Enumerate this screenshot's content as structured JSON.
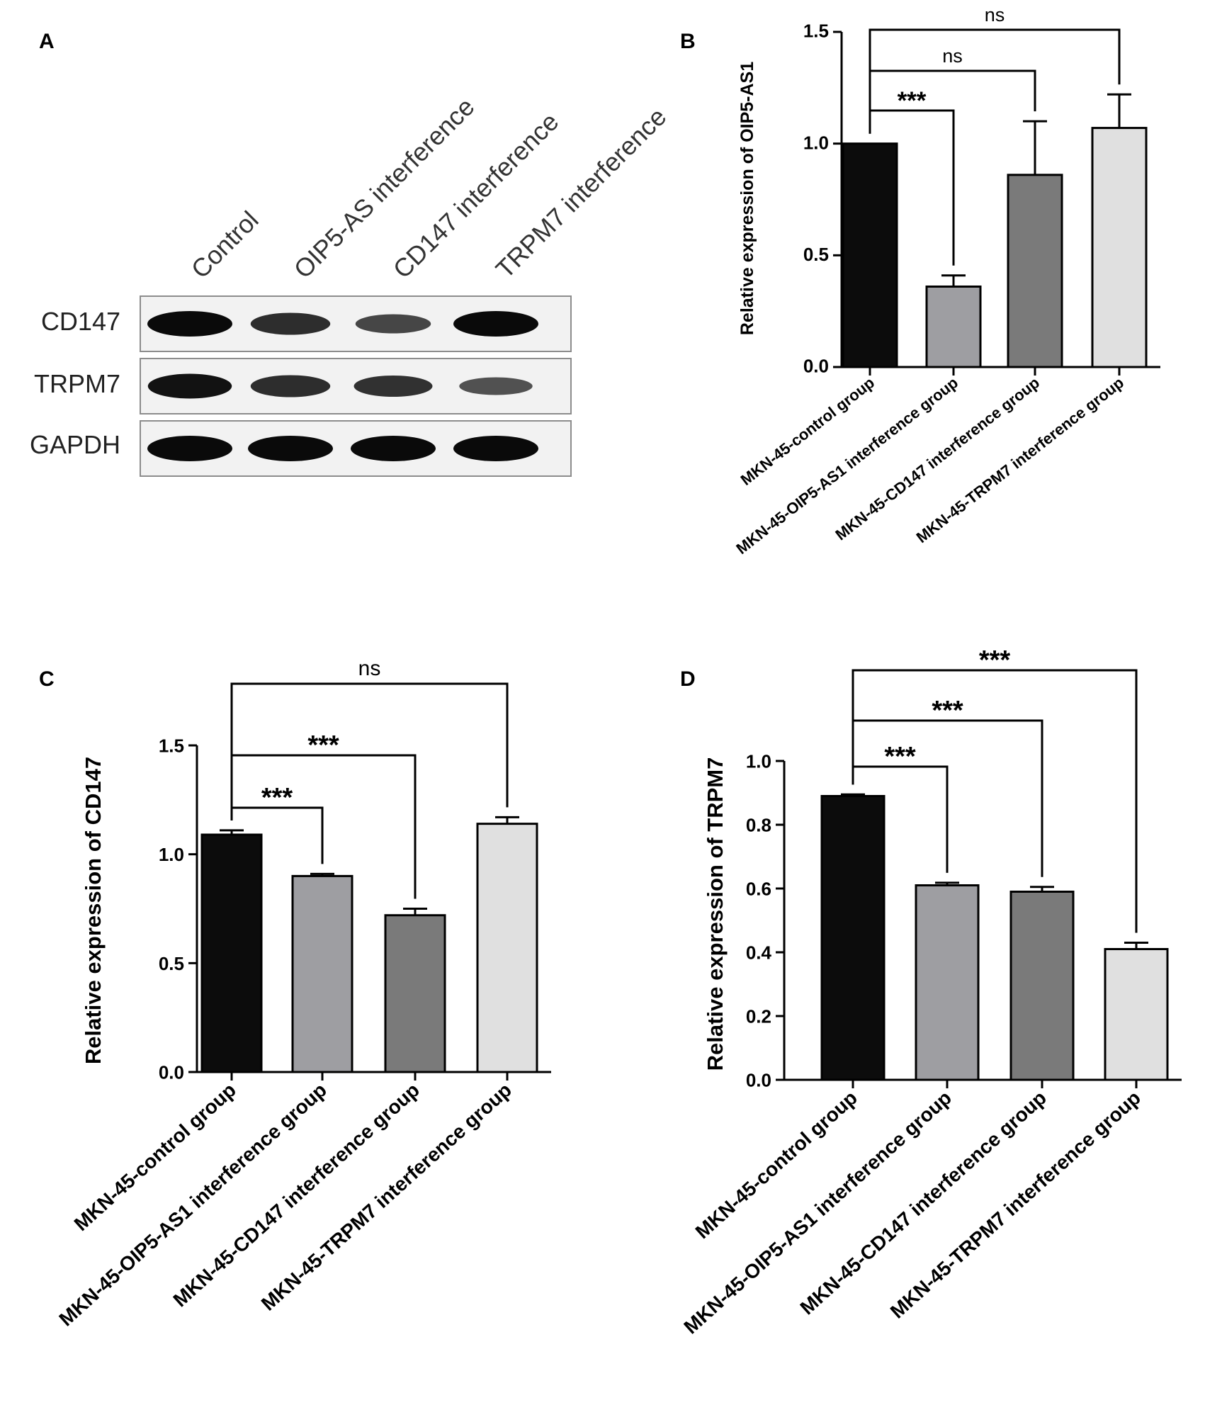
{
  "panels": {
    "A": "A",
    "B": "B",
    "C": "C",
    "D": "D"
  },
  "blot": {
    "lanes": [
      "Control",
      "OIP5-AS interference",
      "CD147 interference",
      "TRPM7 interference"
    ],
    "rows": [
      {
        "label": "CD147",
        "intensities": [
          1.0,
          0.75,
          0.55,
          1.0
        ]
      },
      {
        "label": "TRPM7",
        "intensities": [
          0.95,
          0.75,
          0.7,
          0.45
        ]
      },
      {
        "label": "GAPDH",
        "intensities": [
          1.0,
          1.0,
          1.0,
          1.0
        ]
      }
    ]
  },
  "chart_data": [
    {
      "panel": "B",
      "type": "bar",
      "categories": [
        "MKN-45-control group",
        "MKN-45-OIP5-AS1 interference group",
        "MKN-45-CD147 interference group",
        "MKN-45-TRPM7 interference group"
      ],
      "values": [
        1.0,
        0.36,
        0.86,
        1.07
      ],
      "errors": [
        0,
        0.05,
        0.24,
        0.15
      ],
      "colors": [
        "#0c0c0c",
        "#9e9ea2",
        "#7a7a7a",
        "#e0e0e0"
      ],
      "ylabel": "Relative expression of OIP5-AS1",
      "ylim": [
        0,
        1.5
      ],
      "yticks": [
        "0.0",
        "0.5",
        "1.0",
        "1.5"
      ],
      "comparisons": [
        {
          "from": 0,
          "to": 1,
          "label": "***"
        },
        {
          "from": 0,
          "to": 2,
          "label": "ns"
        },
        {
          "from": 0,
          "to": 3,
          "label": "ns"
        }
      ]
    },
    {
      "panel": "C",
      "type": "bar",
      "categories": [
        "MKN-45-control group",
        "MKN-45-OIP5-AS1 interference group",
        "MKN-45-CD147 interference group",
        "MKN-45-TRPM7 interference group"
      ],
      "values": [
        1.09,
        0.9,
        0.72,
        1.14
      ],
      "errors": [
        0.02,
        0.01,
        0.03,
        0.03
      ],
      "colors": [
        "#0c0c0c",
        "#9e9ea2",
        "#7a7a7a",
        "#e0e0e0"
      ],
      "ylabel": "Relative expression of CD147",
      "ylim": [
        0,
        1.5
      ],
      "yticks": [
        "0.0",
        "0.5",
        "1.0",
        "1.5"
      ],
      "comparisons": [
        {
          "from": 0,
          "to": 1,
          "label": "***"
        },
        {
          "from": 0,
          "to": 2,
          "label": "***"
        },
        {
          "from": 0,
          "to": 3,
          "label": "ns"
        }
      ]
    },
    {
      "panel": "D",
      "type": "bar",
      "categories": [
        "MKN-45-control group",
        "MKN-45-OIP5-AS1 interference group",
        "MKN-45-CD147 interference group",
        "MKN-45-TRPM7 interference group"
      ],
      "values": [
        0.89,
        0.61,
        0.59,
        0.41
      ],
      "errors": [
        0.005,
        0.008,
        0.015,
        0.02
      ],
      "colors": [
        "#0c0c0c",
        "#9e9ea2",
        "#7a7a7a",
        "#e0e0e0"
      ],
      "ylabel": "Relative expression of TRPM7",
      "ylim": [
        0,
        1.0
      ],
      "yticks": [
        "0.0",
        "0.2",
        "0.4",
        "0.6",
        "0.8",
        "1.0"
      ],
      "comparisons": [
        {
          "from": 0,
          "to": 1,
          "label": "***"
        },
        {
          "from": 0,
          "to": 2,
          "label": "***"
        },
        {
          "from": 0,
          "to": 3,
          "label": "***"
        }
      ]
    }
  ]
}
